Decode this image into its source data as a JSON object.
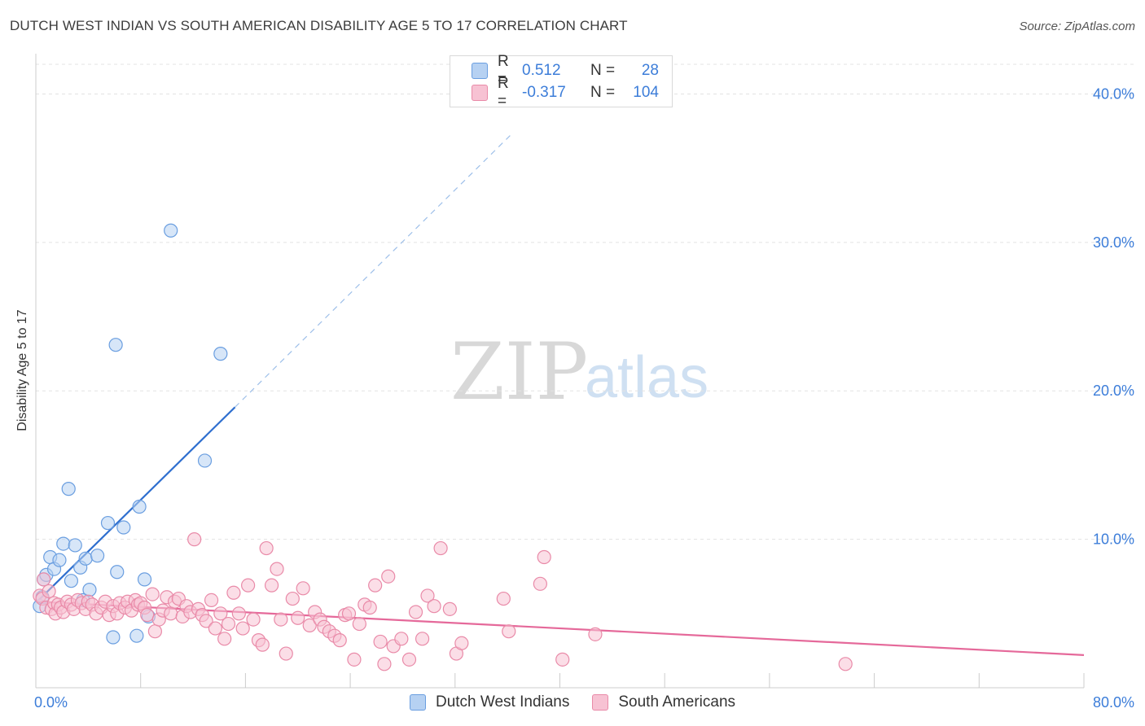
{
  "title": "DUTCH WEST INDIAN VS SOUTH AMERICAN DISABILITY AGE 5 TO 17 CORRELATION CHART",
  "source": "Source: ZipAtlas.com",
  "watermark": {
    "zip": "ZIP",
    "atlas": "atlas"
  },
  "legend": {
    "r_label": "R =",
    "n_label": "N =",
    "rows": [
      {
        "r": "0.512",
        "n": "28",
        "fill": "#b6d1f2",
        "stroke": "#6a9ee0"
      },
      {
        "r": "-0.317",
        "n": "104",
        "fill": "#f7c2d3",
        "stroke": "#e98aa8"
      }
    ]
  },
  "bottom_legend": [
    {
      "label": "Dutch West Indians",
      "fill": "#b6d1f2",
      "stroke": "#6a9ee0"
    },
    {
      "label": "South Americans",
      "fill": "#f7c2d3",
      "stroke": "#e98aa8"
    }
  ],
  "chart_data": {
    "type": "scatter",
    "title": "DUTCH WEST INDIAN VS SOUTH AMERICAN DISABILITY AGE 5 TO 17 CORRELATION CHART",
    "xlabel": "",
    "ylabel": "Disability Age 5 to 17",
    "xlim": [
      0,
      80
    ],
    "ylim": [
      0,
      42
    ],
    "x_tick_labels": [
      {
        "value": 0,
        "label": "0.0%"
      },
      {
        "value": 80,
        "label": "80.0%"
      }
    ],
    "y_tick_labels": [
      {
        "value": 10,
        "label": "10.0%"
      },
      {
        "value": 20,
        "label": "20.0%"
      },
      {
        "value": 30,
        "label": "30.0%"
      },
      {
        "value": 40,
        "label": "40.0%"
      }
    ],
    "x_minor_ticks": [
      0,
      8,
      16,
      24,
      32,
      40,
      48,
      56,
      64,
      72,
      80
    ],
    "series": [
      {
        "name": "Dutch West Indians",
        "color": "#6a9ee0",
        "fill": "#b6d1f2",
        "R": 0.512,
        "N": 28,
        "trend": {
          "solid": [
            [
              0.1,
              5.8
            ],
            [
              15.2,
              18.9
            ]
          ],
          "dashed": [
            [
              15.2,
              18.9
            ],
            [
              36.2,
              37.2
            ]
          ],
          "color": "#2f6fcf"
        },
        "points": [
          [
            0.3,
            5.5
          ],
          [
            0.5,
            6.1
          ],
          [
            0.6,
            7.3
          ],
          [
            0.8,
            7.6
          ],
          [
            1.1,
            8.8
          ],
          [
            1.4,
            8.0
          ],
          [
            1.8,
            8.6
          ],
          [
            2.1,
            9.7
          ],
          [
            2.5,
            13.4
          ],
          [
            2.7,
            7.2
          ],
          [
            3.0,
            9.6
          ],
          [
            3.4,
            8.1
          ],
          [
            3.6,
            5.9
          ],
          [
            3.8,
            8.7
          ],
          [
            4.1,
            6.6
          ],
          [
            4.7,
            8.9
          ],
          [
            5.5,
            11.1
          ],
          [
            5.9,
            3.4
          ],
          [
            6.1,
            23.1
          ],
          [
            6.2,
            7.8
          ],
          [
            6.7,
            10.8
          ],
          [
            7.7,
            3.5
          ],
          [
            7.9,
            12.2
          ],
          [
            8.3,
            7.3
          ],
          [
            8.6,
            4.8
          ],
          [
            10.3,
            30.8
          ],
          [
            12.9,
            15.3
          ],
          [
            14.1,
            22.5
          ]
        ]
      },
      {
        "name": "South Americans",
        "color": "#e98aa8",
        "fill": "#f7c2d3",
        "R": -0.317,
        "N": 104,
        "trend": {
          "solid": [
            [
              0.1,
              5.8
            ],
            [
              80.0,
              2.2
            ]
          ],
          "color": "#e5699a"
        },
        "points": [
          [
            0.3,
            6.2
          ],
          [
            0.5,
            6.0
          ],
          [
            0.6,
            7.3
          ],
          [
            0.8,
            5.4
          ],
          [
            1.0,
            6.5
          ],
          [
            1.2,
            5.3
          ],
          [
            1.4,
            5.7
          ],
          [
            1.5,
            5.0
          ],
          [
            1.7,
            5.6
          ],
          [
            1.9,
            5.4
          ],
          [
            2.1,
            5.1
          ],
          [
            2.4,
            5.8
          ],
          [
            2.7,
            5.6
          ],
          [
            2.9,
            5.3
          ],
          [
            3.2,
            5.9
          ],
          [
            3.5,
            5.7
          ],
          [
            3.8,
            5.3
          ],
          [
            4.0,
            5.8
          ],
          [
            4.3,
            5.6
          ],
          [
            4.6,
            5.0
          ],
          [
            5.0,
            5.4
          ],
          [
            5.3,
            5.8
          ],
          [
            5.6,
            4.9
          ],
          [
            5.9,
            5.5
          ],
          [
            6.2,
            5.0
          ],
          [
            6.4,
            5.7
          ],
          [
            6.8,
            5.4
          ],
          [
            7.0,
            5.8
          ],
          [
            7.3,
            5.2
          ],
          [
            7.6,
            5.9
          ],
          [
            7.8,
            5.6
          ],
          [
            8.0,
            5.7
          ],
          [
            8.3,
            5.4
          ],
          [
            8.5,
            4.9
          ],
          [
            8.9,
            6.3
          ],
          [
            9.1,
            3.8
          ],
          [
            9.4,
            4.6
          ],
          [
            9.7,
            5.2
          ],
          [
            10.0,
            6.1
          ],
          [
            10.3,
            5.0
          ],
          [
            10.6,
            5.8
          ],
          [
            10.9,
            6.0
          ],
          [
            11.2,
            4.8
          ],
          [
            11.5,
            5.5
          ],
          [
            11.8,
            5.1
          ],
          [
            12.1,
            10.0
          ],
          [
            12.4,
            5.3
          ],
          [
            12.7,
            4.9
          ],
          [
            13.0,
            4.5
          ],
          [
            13.4,
            5.9
          ],
          [
            13.7,
            4.0
          ],
          [
            14.1,
            5.0
          ],
          [
            14.4,
            3.3
          ],
          [
            14.7,
            4.3
          ],
          [
            15.1,
            6.4
          ],
          [
            15.5,
            5.0
          ],
          [
            15.8,
            4.0
          ],
          [
            16.2,
            6.9
          ],
          [
            16.6,
            4.6
          ],
          [
            17.0,
            3.2
          ],
          [
            17.3,
            2.9
          ],
          [
            17.6,
            9.4
          ],
          [
            18.0,
            6.9
          ],
          [
            18.4,
            8.0
          ],
          [
            18.7,
            4.6
          ],
          [
            19.1,
            2.3
          ],
          [
            19.6,
            6.0
          ],
          [
            20.0,
            4.7
          ],
          [
            20.4,
            6.7
          ],
          [
            20.9,
            4.2
          ],
          [
            21.3,
            5.1
          ],
          [
            21.7,
            4.6
          ],
          [
            22.0,
            4.1
          ],
          [
            22.4,
            3.8
          ],
          [
            22.8,
            3.5
          ],
          [
            23.2,
            3.2
          ],
          [
            23.6,
            4.9
          ],
          [
            23.9,
            5.0
          ],
          [
            24.3,
            1.9
          ],
          [
            24.7,
            4.3
          ],
          [
            25.1,
            5.6
          ],
          [
            25.5,
            5.4
          ],
          [
            25.9,
            6.9
          ],
          [
            26.3,
            3.1
          ],
          [
            26.6,
            1.6
          ],
          [
            26.9,
            7.5
          ],
          [
            27.3,
            2.8
          ],
          [
            27.9,
            3.3
          ],
          [
            28.5,
            1.9
          ],
          [
            29.0,
            5.1
          ],
          [
            29.5,
            3.3
          ],
          [
            29.9,
            6.2
          ],
          [
            30.4,
            5.5
          ],
          [
            30.9,
            9.4
          ],
          [
            31.6,
            5.3
          ],
          [
            32.1,
            2.3
          ],
          [
            32.5,
            3.0
          ],
          [
            35.7,
            6.0
          ],
          [
            36.1,
            3.8
          ],
          [
            38.5,
            7.0
          ],
          [
            38.8,
            8.8
          ],
          [
            40.2,
            1.9
          ],
          [
            42.7,
            3.6
          ],
          [
            61.8,
            1.6
          ]
        ]
      }
    ],
    "gridlines": true,
    "legend_position": "top-center"
  }
}
